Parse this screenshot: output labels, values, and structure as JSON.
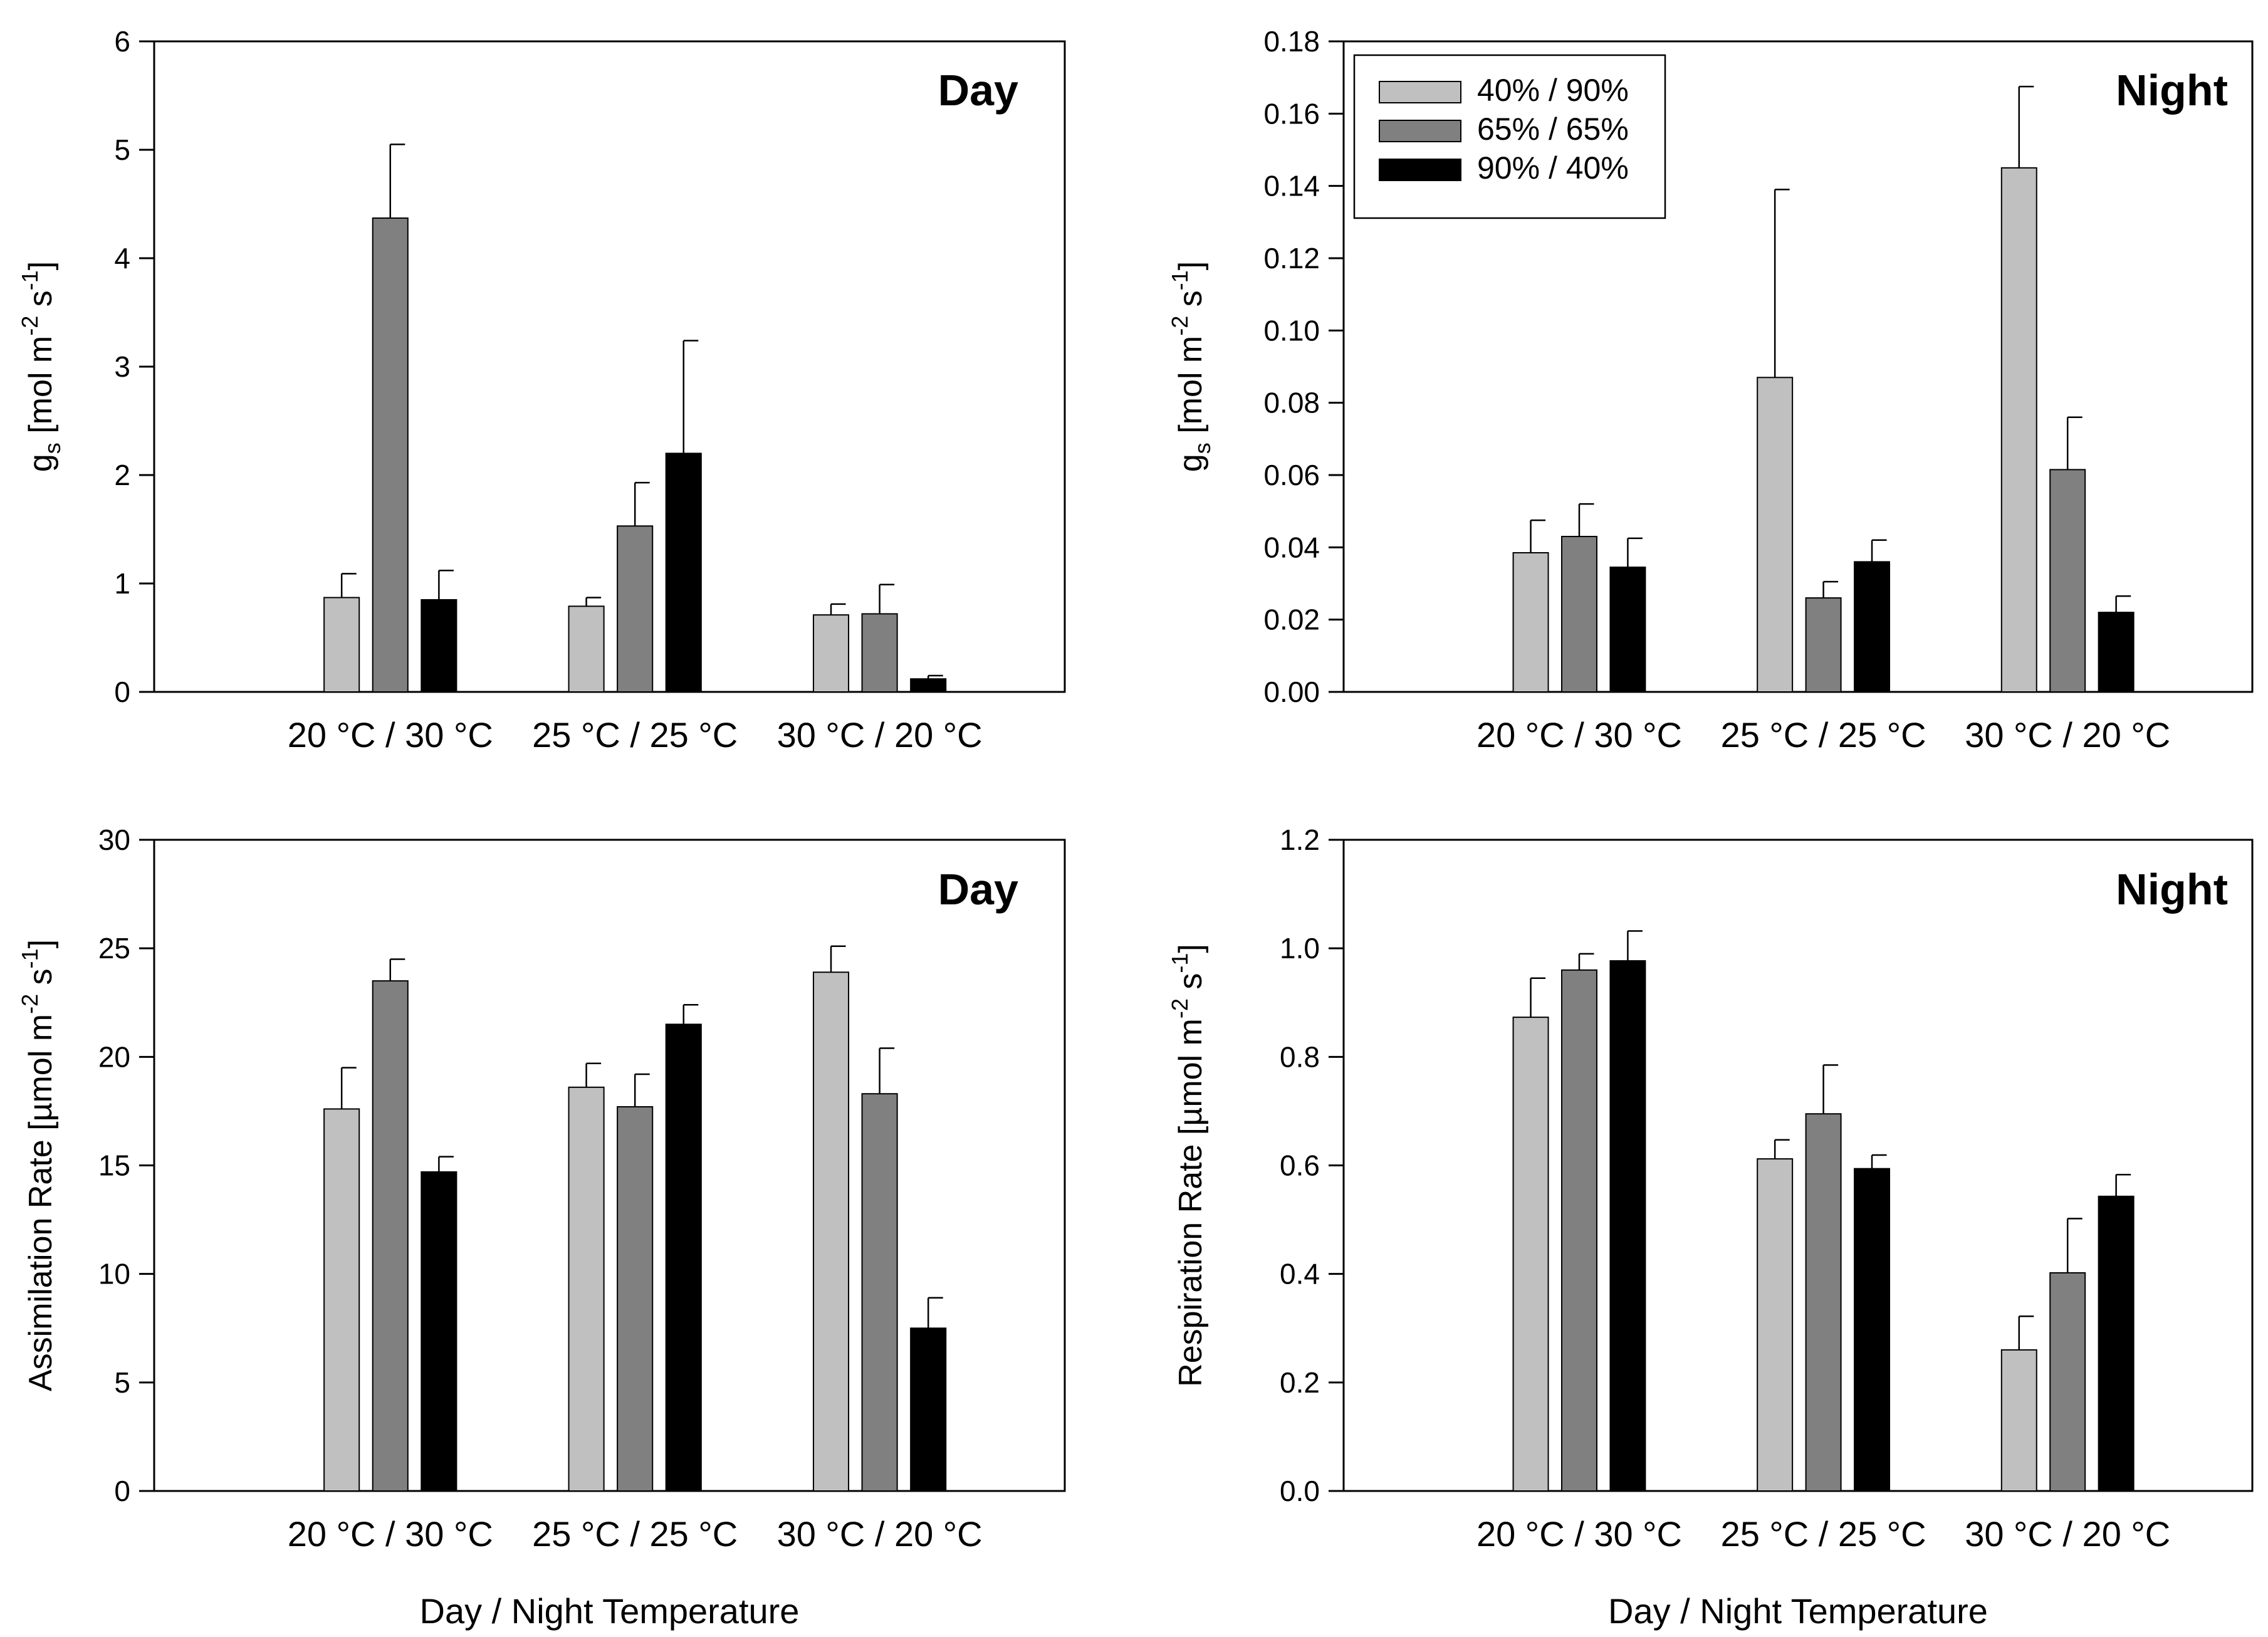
{
  "figure": {
    "xlabel": "Day / Night Temperature"
  },
  "legend": [
    {
      "name": "40% / 90%",
      "color": "#c0c0c0"
    },
    {
      "name": "65% / 65%",
      "color": "#808080"
    },
    {
      "name": "90% / 40%",
      "color": "#000000"
    }
  ],
  "chart_data": [
    {
      "type": "bar",
      "panel": "top-left",
      "title": "Day",
      "ylabel": "g_s [mol m-2 s-1]",
      "ylabel_parts": {
        "base": "g",
        "sub": "s",
        "unit": "mol m",
        "exp1": "-2",
        "unit2": "s",
        "exp2": "-1"
      },
      "xlabel": "",
      "categories": [
        "20 °C / 30 °C",
        "25 °C / 25 °C",
        "30 °C / 20 °C"
      ],
      "ylim": [
        0,
        6
      ],
      "yticks": [
        "0",
        "1",
        "2",
        "3",
        "4",
        "5",
        "6"
      ],
      "series": [
        {
          "name": "40% / 90%",
          "values": [
            0.87,
            0.79,
            0.71
          ],
          "errors": [
            0.22,
            0.08,
            0.1
          ]
        },
        {
          "name": "65% / 65%",
          "values": [
            4.37,
            1.53,
            0.72
          ],
          "errors": [
            0.68,
            0.4,
            0.27
          ]
        },
        {
          "name": "90% / 40%",
          "values": [
            0.85,
            2.2,
            0.12
          ],
          "errors": [
            0.27,
            1.04,
            0.03
          ]
        }
      ]
    },
    {
      "type": "bar",
      "panel": "top-right",
      "title": "Night",
      "ylabel": "g_s [mol m-2 s-1]",
      "ylabel_parts": {
        "base": "g",
        "sub": "s",
        "unit": "mol m",
        "exp1": "-2",
        "unit2": "s",
        "exp2": "-1"
      },
      "xlabel": "",
      "legend_position": "top-left",
      "categories": [
        "20 °C / 30 °C",
        "25 °C / 25 °C",
        "30 °C / 20 °C"
      ],
      "ylim": [
        0,
        0.18
      ],
      "yticks": [
        "0.00",
        "0.02",
        "0.04",
        "0.06",
        "0.08",
        "0.10",
        "0.12",
        "0.14",
        "0.16",
        "0.18"
      ],
      "series": [
        {
          "name": "40% / 90%",
          "values": [
            0.0385,
            0.087,
            0.145
          ],
          "errors": [
            0.009,
            0.052,
            0.0225
          ]
        },
        {
          "name": "65% / 65%",
          "values": [
            0.043,
            0.026,
            0.0615
          ],
          "errors": [
            0.009,
            0.0045,
            0.0145
          ]
        },
        {
          "name": "90% / 40%",
          "values": [
            0.0345,
            0.036,
            0.022
          ],
          "errors": [
            0.008,
            0.006,
            0.0045
          ]
        }
      ]
    },
    {
      "type": "bar",
      "panel": "bottom-left",
      "title": "Day",
      "ylabel": "Assimilation Rate [µmol m-2 s-1]",
      "ylabel_parts": {
        "base": "Assimilation Rate",
        "sub": "",
        "unit": "µmol m",
        "exp1": "-2",
        "unit2": "s",
        "exp2": "-1"
      },
      "xlabel": "Day / Night Temperature",
      "categories": [
        "20 °C / 30 °C",
        "25 °C / 25 °C",
        "30 °C / 20 °C"
      ],
      "ylim": [
        0,
        30
      ],
      "yticks": [
        "0",
        "5",
        "10",
        "15",
        "20",
        "25",
        "30"
      ],
      "series": [
        {
          "name": "40% / 90%",
          "values": [
            17.6,
            18.6,
            23.9
          ],
          "errors": [
            1.9,
            1.1,
            1.2
          ]
        },
        {
          "name": "65% / 65%",
          "values": [
            23.5,
            17.7,
            18.3
          ],
          "errors": [
            1.0,
            1.5,
            2.1
          ]
        },
        {
          "name": "90% / 40%",
          "values": [
            14.7,
            21.5,
            7.5
          ],
          "errors": [
            0.7,
            0.9,
            1.4
          ]
        }
      ]
    },
    {
      "type": "bar",
      "panel": "bottom-right",
      "title": "Night",
      "ylabel": "Respiration Rate [µmol m-2 s-1]",
      "ylabel_parts": {
        "base": "Respiration Rate",
        "sub": "",
        "unit": "µmol m",
        "exp1": "-2",
        "unit2": "s",
        "exp2": "-1"
      },
      "xlabel": "Day / Night Temperature",
      "categories": [
        "20 °C / 30 °C",
        "25 °C / 25 °C",
        "30 °C / 20 °C"
      ],
      "ylim": [
        0,
        1.2
      ],
      "yticks": [
        "0.0",
        "0.2",
        "0.4",
        "0.6",
        "0.8",
        "1.0",
        "1.2"
      ],
      "series": [
        {
          "name": "40% / 90%",
          "values": [
            0.873,
            0.612,
            0.26
          ],
          "errors": [
            0.072,
            0.035,
            0.062
          ]
        },
        {
          "name": "65% / 65%",
          "values": [
            0.96,
            0.695,
            0.402
          ],
          "errors": [
            0.03,
            0.09,
            0.1
          ]
        },
        {
          "name": "90% / 40%",
          "values": [
            0.977,
            0.594,
            0.543
          ],
          "errors": [
            0.055,
            0.025,
            0.04
          ]
        }
      ]
    }
  ]
}
